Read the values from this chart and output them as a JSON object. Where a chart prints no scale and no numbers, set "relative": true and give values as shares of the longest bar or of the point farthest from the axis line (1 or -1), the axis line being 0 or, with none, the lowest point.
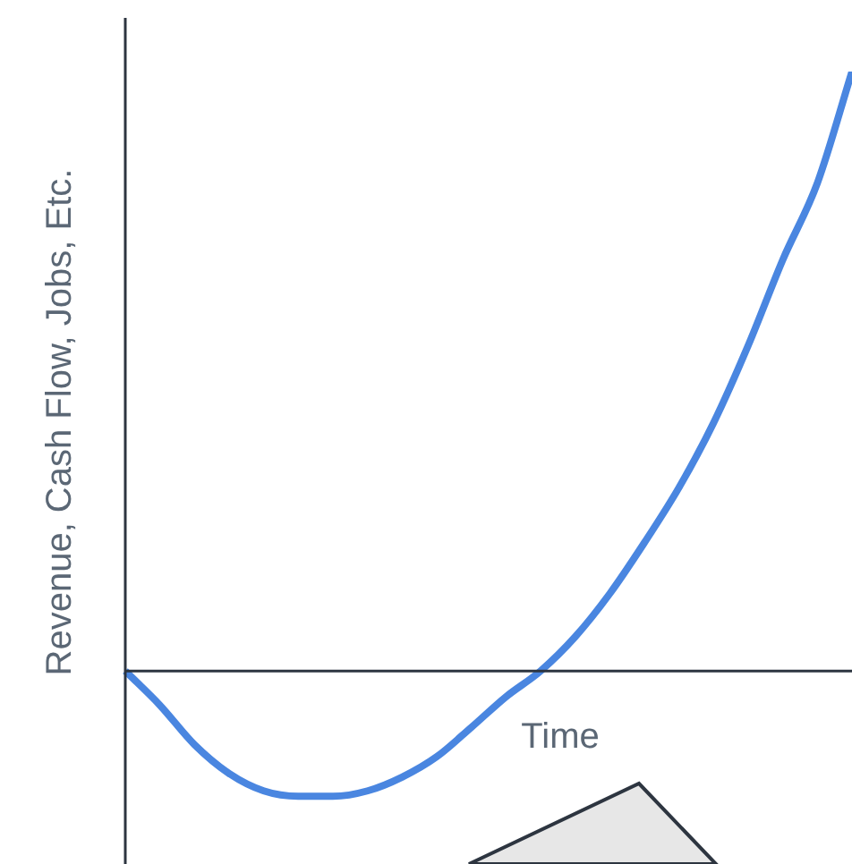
{
  "chart_data": {
    "type": "line",
    "relative": true,
    "xlabel": "Time",
    "ylabel": "Revenue, Cash Flow, Jobs, Etc.",
    "categories": [
      null,
      null,
      null,
      null,
      null,
      null,
      null,
      null,
      null,
      null,
      null,
      null,
      null,
      null,
      null,
      null,
      null,
      null,
      null,
      null,
      null,
      null
    ],
    "series": [
      {
        "color": "#4a86e0",
        "values": [
          0,
          -0.057,
          -0.123,
          -0.171,
          -0.2,
          -0.209,
          -0.209,
          -0.2,
          -0.177,
          -0.143,
          -0.094,
          -0.043,
          0,
          0.057,
          0.129,
          0.214,
          0.306,
          0.414,
          0.543,
          0.686,
          0.814,
          1
        ]
      }
    ],
    "legend": false,
    "grid": false,
    "marker": "none"
  }
}
